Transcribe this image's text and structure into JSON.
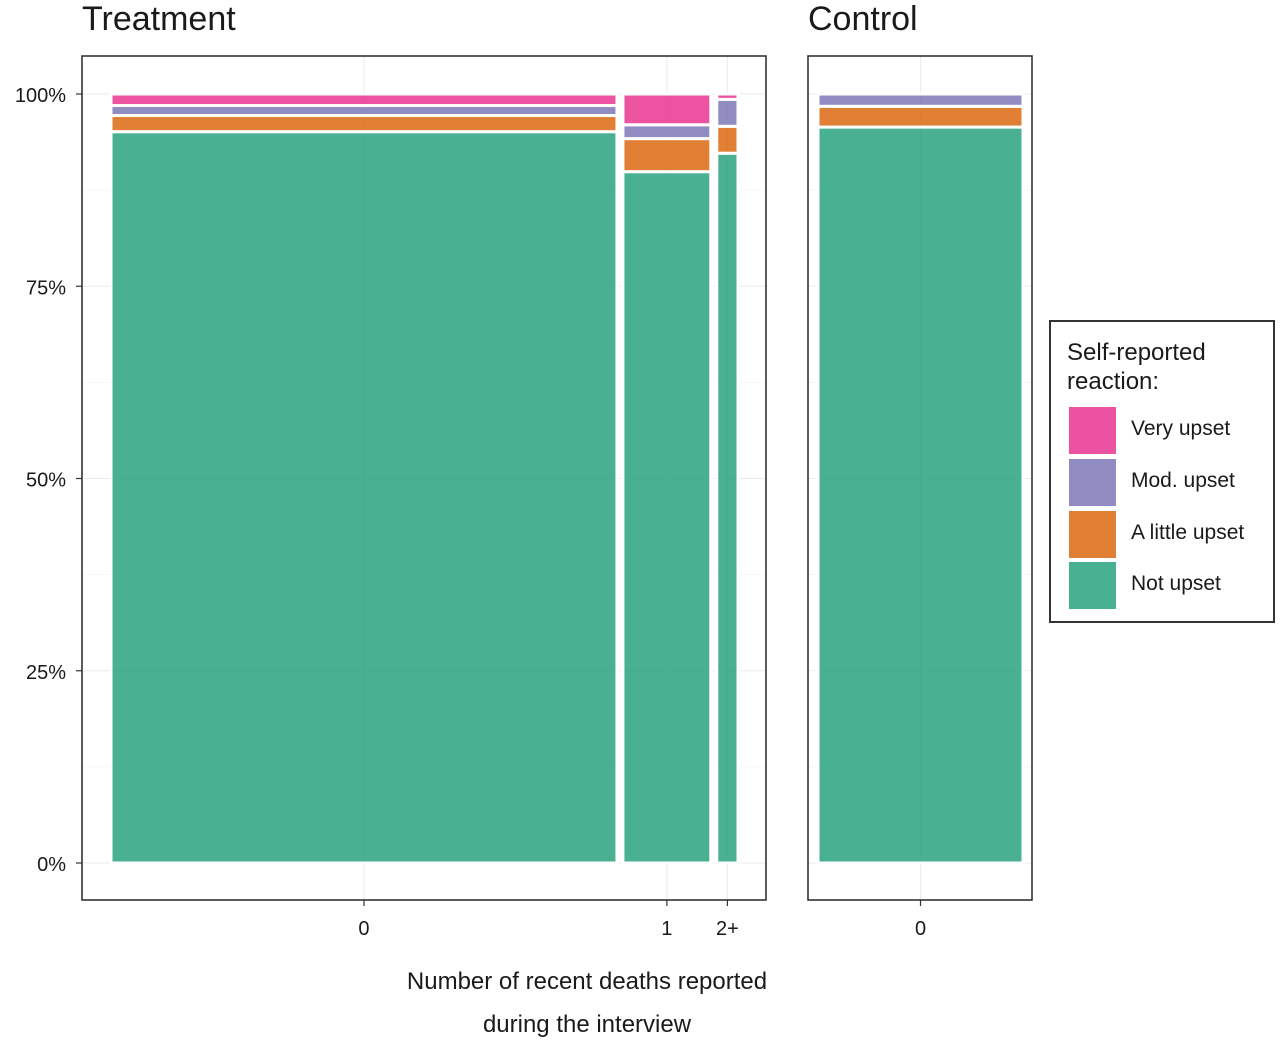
{
  "chart_data": {
    "type": "bar",
    "subtype": "mosaic (variable-width 100% stacked bars)",
    "xlabel_lines": [
      "Number of recent deaths reported",
      "during the interview"
    ],
    "y_ticks": [
      "0%",
      "25%",
      "50%",
      "75%",
      "100%"
    ],
    "ylim": [
      0,
      100
    ],
    "grid": true,
    "legend_position": "right",
    "legend": {
      "title_lines": [
        "Self-reported",
        "reaction:"
      ],
      "entries": [
        {
          "label": "Very upset",
          "color": "#e7298a"
        },
        {
          "label": "Mod. upset",
          "color": "#7570b3"
        },
        {
          "label": "A little upset",
          "color": "#d95f02"
        },
        {
          "label": "Not upset",
          "color": "#1b9e77"
        }
      ]
    },
    "series_order": [
      "Not upset",
      "A little upset",
      "Mod. upset",
      "Very upset"
    ],
    "panels": [
      {
        "title": "Treatment",
        "categories": [
          {
            "label": "0",
            "share": 0.835,
            "values": {
              "Not upset": 95.1,
              "A little upset": 2.1,
              "Mod. upset": 1.3,
              "Very upset": 1.5
            }
          },
          {
            "label": "1",
            "share": 0.145,
            "values": {
              "Not upset": 89.9,
              "A little upset": 4.3,
              "Mod. upset": 1.8,
              "Very upset": 4.0
            }
          },
          {
            "label": "2+",
            "share": 0.035,
            "values": {
              "Not upset": 92.3,
              "A little upset": 3.5,
              "Mod. upset": 3.5,
              "Very upset": 0.7
            }
          }
        ]
      },
      {
        "title": "Control",
        "categories": [
          {
            "label": "0",
            "share": 1.0,
            "values": {
              "Not upset": 95.7,
              "A little upset": 2.7,
              "Mod. upset": 1.6,
              "Very upset": 0.0
            }
          }
        ]
      }
    ]
  }
}
